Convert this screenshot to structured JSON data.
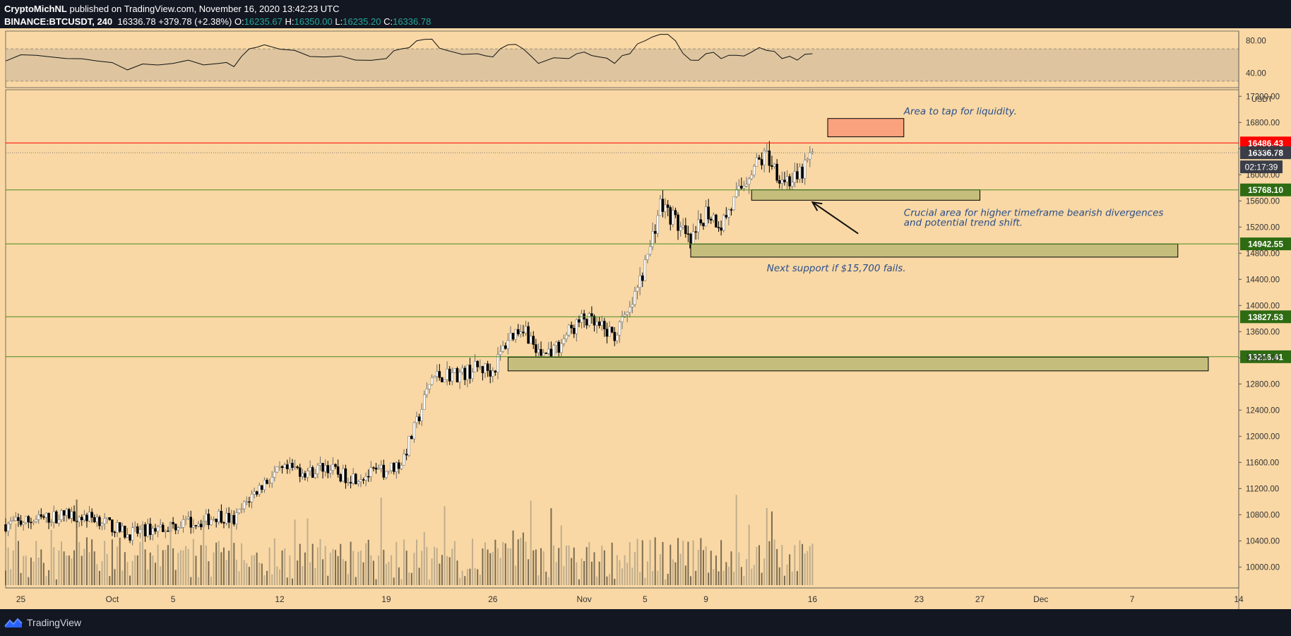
{
  "header": {
    "author": "CryptoMichNL",
    "published_text": "published on TradingView.com, November 16, 2020 13:42:23 UTC",
    "symbol": "BINANCE:BTCUSDT, 240",
    "last": "16336.78",
    "change": "+379.78 (+2.38%)",
    "o_label": "O:",
    "o_value": "16235.67",
    "h_label": "H:",
    "h_value": "16350.00",
    "l_label": "L:",
    "l_value": "16235.20",
    "c_label": "C:",
    "c_value": "16336.78"
  },
  "footer": {
    "brand": "TradingView"
  },
  "colors": {
    "background": "#f9d8a5",
    "candle_up": "#ffffff",
    "candle_down": "#000000",
    "resistance": "#ff0000",
    "support": "#4a8a1e",
    "zone_fill": "#c5bd7c",
    "liquidity_fill": "#f9a27d",
    "annotation": "#2b4f8a"
  },
  "chart_data": {
    "type": "candlestick",
    "symbol": "BINANCE:BTCUSDT",
    "timeframe": "240",
    "price_unit": "USDT",
    "y_ticks": [
      10000,
      10400,
      10800,
      11200,
      11600,
      12000,
      12400,
      12800,
      13200,
      13600,
      14000,
      14400,
      14800,
      15200,
      15600,
      16000,
      16400,
      16800,
      17200
    ],
    "y_tick_labels": [
      "10000.00",
      "10400.00",
      "10800.00",
      "11200.00",
      "11600.00",
      "12000.00",
      "12400.00",
      "12800.00",
      "13200.00",
      "13600.00",
      "14000.00",
      "14400.00",
      "14800.00",
      "15200.00",
      "15600.00",
      "16000.00",
      "16400.00",
      "16800.00",
      "17200.00"
    ],
    "ylim": [
      9680,
      17300
    ],
    "x_ticks": [
      {
        "date": "2020-09-25",
        "label": "25"
      },
      {
        "date": "2020-10-01",
        "label": "Oct"
      },
      {
        "date": "2020-10-05",
        "label": "5"
      },
      {
        "date": "2020-10-12",
        "label": "12"
      },
      {
        "date": "2020-10-19",
        "label": "19"
      },
      {
        "date": "2020-10-26",
        "label": "26"
      },
      {
        "date": "2020-11-01",
        "label": "Nov"
      },
      {
        "date": "2020-11-05",
        "label": "5"
      },
      {
        "date": "2020-11-09",
        "label": "9"
      },
      {
        "date": "2020-11-16",
        "label": "16"
      },
      {
        "date": "2020-11-23",
        "label": "23"
      },
      {
        "date": "2020-11-27",
        "label": "27"
      },
      {
        "date": "2020-12-01",
        "label": "Dec"
      },
      {
        "date": "2020-12-07",
        "label": "7"
      },
      {
        "date": "2020-12-14",
        "label": "14"
      }
    ],
    "xlim": [
      "2020-09-24",
      "2020-12-14"
    ],
    "horizontal_levels": [
      {
        "price": 16486.43,
        "label": "16486.43",
        "kind": "resistance"
      },
      {
        "price": 15768.1,
        "label": "15768.10",
        "kind": "support"
      },
      {
        "price": 14942.55,
        "label": "14942.55",
        "kind": "support"
      },
      {
        "price": 13827.53,
        "label": "13827.53",
        "kind": "support"
      },
      {
        "price": 13216.41,
        "label": "13216.41",
        "kind": "support"
      }
    ],
    "last_price": {
      "price": 16336.78,
      "label": "16336.78",
      "countdown": "02:17:39"
    },
    "zones": [
      {
        "start": "2020-11-17",
        "end": "2020-11-22",
        "top": 16860,
        "bottom": 16580,
        "kind": "liquidity"
      },
      {
        "start": "2020-11-12",
        "end": "2020-11-27",
        "top": 15770,
        "bottom": 15610,
        "kind": "support"
      },
      {
        "start": "2020-11-08",
        "end": "2020-12-10",
        "top": 14940,
        "bottom": 14740,
        "kind": "support"
      },
      {
        "start": "2020-10-27",
        "end": "2020-12-12",
        "top": 13210,
        "bottom": 13000,
        "kind": "support"
      }
    ],
    "annotations": [
      {
        "text": "Area to tap for liquidity.",
        "date": "2020-11-22",
        "price": 16920
      },
      {
        "text": "Crucial area for higher timeframe bearish divergences",
        "date": "2020-11-22",
        "price": 15370
      },
      {
        "text": "and potential trend shift.",
        "date": "2020-11-22",
        "price": 15220
      },
      {
        "text": "Next support if $15,700 fails.",
        "date": "2020-11-13",
        "price": 14520
      }
    ],
    "arrow": {
      "from_date": "2020-11-19",
      "from_price": 15100,
      "to_date": "2020-11-16",
      "to_price": 15580
    },
    "rsi": {
      "ticks": [
        80,
        40
      ],
      "tick_labels": [
        "80.00",
        "40.00"
      ],
      "band": [
        70,
        30
      ],
      "ylim": [
        22,
        92
      ]
    },
    "price_path": [
      [
        "2020-09-24",
        10650
      ],
      [
        "2020-09-26",
        10720
      ],
      [
        "2020-09-28",
        10800
      ],
      [
        "2020-09-30",
        10750
      ],
      [
        "2020-10-01",
        10620
      ],
      [
        "2020-10-02",
        10500
      ],
      [
        "2020-10-04",
        10600
      ],
      [
        "2020-10-06",
        10680
      ],
      [
        "2020-10-07",
        10700
      ],
      [
        "2020-10-08",
        10800
      ],
      [
        "2020-10-09",
        10700
      ],
      [
        "2020-10-10",
        11050
      ],
      [
        "2020-10-11",
        11300
      ],
      [
        "2020-10-12",
        11450
      ],
      [
        "2020-10-13",
        11500
      ],
      [
        "2020-10-14",
        11450
      ],
      [
        "2020-10-15",
        11550
      ],
      [
        "2020-10-16",
        11400
      ],
      [
        "2020-10-17",
        11380
      ],
      [
        "2020-10-18",
        11420
      ],
      [
        "2020-10-19",
        11480
      ],
      [
        "2020-10-20",
        11600
      ],
      [
        "2020-10-21",
        12200
      ],
      [
        "2020-10-22",
        12900
      ],
      [
        "2020-10-23",
        12950
      ],
      [
        "2020-10-24",
        12950
      ],
      [
        "2020-10-25",
        13050
      ],
      [
        "2020-10-26",
        13000
      ],
      [
        "2020-10-27",
        13500
      ],
      [
        "2020-10-28",
        13700
      ],
      [
        "2020-10-29",
        13250
      ],
      [
        "2020-10-30",
        13300
      ],
      [
        "2020-10-31",
        13600
      ],
      [
        "2020-11-01",
        13800
      ],
      [
        "2020-11-02",
        13650
      ],
      [
        "2020-11-03",
        13550
      ],
      [
        "2020-11-04",
        13900
      ],
      [
        "2020-11-05",
        14600
      ],
      [
        "2020-11-06",
        15550
      ],
      [
        "2020-11-07",
        15300
      ],
      [
        "2020-11-08",
        14900
      ],
      [
        "2020-11-09",
        15450
      ],
      [
        "2020-11-10",
        15250
      ],
      [
        "2020-11-11",
        15650
      ],
      [
        "2020-11-12",
        16100
      ],
      [
        "2020-11-13",
        16300
      ],
      [
        "2020-11-14",
        15950
      ],
      [
        "2020-11-15",
        15900
      ],
      [
        "2020-11-16",
        16336.78
      ]
    ],
    "rsi_path": [
      [
        "2020-09-24",
        55
      ],
      [
        "2020-09-26",
        62
      ],
      [
        "2020-09-28",
        58
      ],
      [
        "2020-09-30",
        55
      ],
      [
        "2020-10-02",
        44
      ],
      [
        "2020-10-04",
        50
      ],
      [
        "2020-10-06",
        56
      ],
      [
        "2020-10-08",
        52
      ],
      [
        "2020-10-09",
        48
      ],
      [
        "2020-10-10",
        70
      ],
      [
        "2020-10-11",
        75
      ],
      [
        "2020-10-13",
        68
      ],
      [
        "2020-10-15",
        60
      ],
      [
        "2020-10-17",
        56
      ],
      [
        "2020-10-19",
        58
      ],
      [
        "2020-10-20",
        70
      ],
      [
        "2020-10-21",
        80
      ],
      [
        "2020-10-22",
        82
      ],
      [
        "2020-10-23",
        68
      ],
      [
        "2020-10-25",
        64
      ],
      [
        "2020-10-26",
        60
      ],
      [
        "2020-10-27",
        75
      ],
      [
        "2020-10-28",
        70
      ],
      [
        "2020-10-29",
        52
      ],
      [
        "2020-10-31",
        58
      ],
      [
        "2020-11-01",
        66
      ],
      [
        "2020-11-02",
        60
      ],
      [
        "2020-11-03",
        52
      ],
      [
        "2020-11-04",
        64
      ],
      [
        "2020-11-05",
        80
      ],
      [
        "2020-11-06",
        88
      ],
      [
        "2020-11-07",
        80
      ],
      [
        "2020-11-08",
        56
      ],
      [
        "2020-11-09",
        64
      ],
      [
        "2020-11-10",
        58
      ],
      [
        "2020-11-11",
        62
      ],
      [
        "2020-11-12",
        66
      ],
      [
        "2020-11-13",
        68
      ],
      [
        "2020-11-14",
        58
      ],
      [
        "2020-11-15",
        56
      ],
      [
        "2020-11-16",
        64
      ]
    ]
  }
}
